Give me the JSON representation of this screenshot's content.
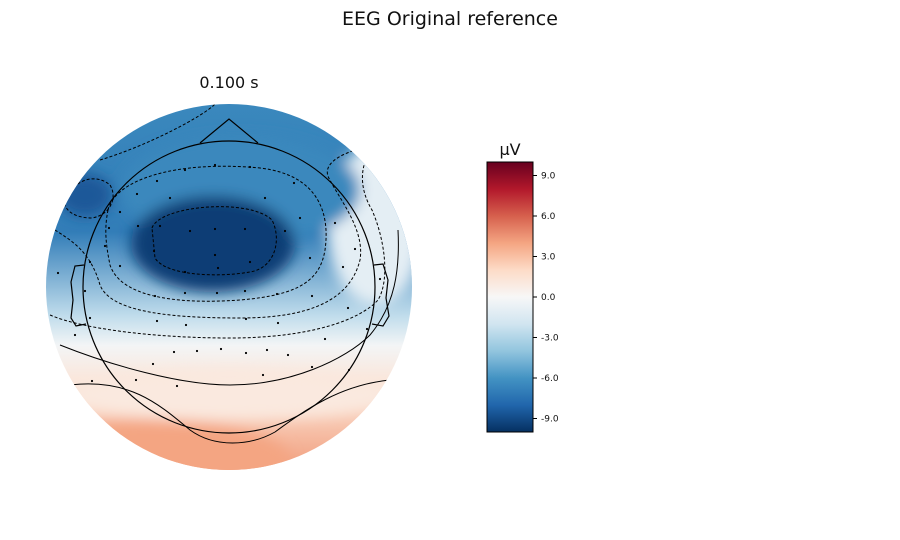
{
  "figure": {
    "title": "EEG Original reference"
  },
  "chart_data": {
    "type": "heatmap",
    "subtype": "eeg-topomap",
    "title": "0.100 s",
    "time": "0.100 s",
    "colorbar": {
      "label": "µV",
      "colormap": "RdBu_r",
      "vmin": -10,
      "vmax": 10,
      "ticks": [
        9.0,
        6.0,
        3.0,
        0.0,
        -3.0,
        -6.0,
        -9.0
      ],
      "tick_labels": [
        "9.0",
        "6.0",
        "3.0",
        "0.0",
        "-3.0",
        "-6.0",
        "-9.0"
      ]
    },
    "field_summary": [
      {
        "region": "central",
        "value": -9.5
      },
      {
        "region": "left-frontal",
        "value": -8.5
      },
      {
        "region": "frontal",
        "value": -6.5
      },
      {
        "region": "right-temporal",
        "value": -1.0
      },
      {
        "region": "parietal",
        "value": 1.0
      },
      {
        "region": "occipital",
        "value": 4.0
      }
    ],
    "contour_levels": [
      -8,
      -6,
      -4,
      -2,
      0,
      2
    ],
    "sensor_count": 60,
    "grid": false
  },
  "colors": {
    "outline": "#000000",
    "sensor": "#000000"
  }
}
